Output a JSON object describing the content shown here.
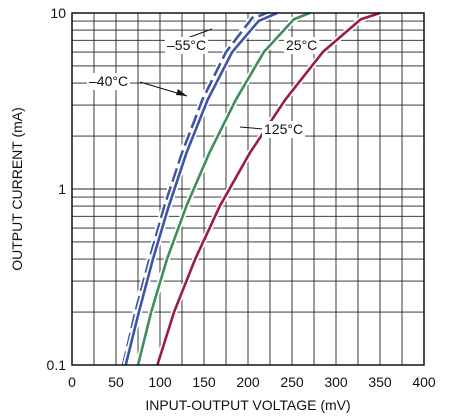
{
  "chart_data": {
    "type": "line",
    "title": "",
    "xlabel": "INPUT-OUTPUT VOLTAGE (mV)",
    "ylabel": "OUTPUT CURRENT (mA)",
    "x_scale": "linear",
    "y_scale": "log",
    "xlim": [
      0,
      400
    ],
    "ylim": [
      0.1,
      10
    ],
    "x_ticks": [
      "0",
      "50",
      "100",
      "150",
      "200",
      "250",
      "300",
      "350",
      "400"
    ],
    "y_ticks": [
      "0.1",
      "1",
      "10"
    ],
    "grid": true,
    "series": [
      {
        "name": "–55°C",
        "color": "#3c55a4",
        "dashed": true,
        "x": [
          58,
          72,
          88,
          105,
          125,
          148,
          175,
          205,
          225
        ],
        "y": [
          0.1,
          0.2,
          0.4,
          0.8,
          1.6,
          3.2,
          6.0,
          9.4,
          10
        ]
      },
      {
        "name": "–40°C",
        "color": "#3c55a4",
        "dashed": false,
        "x": [
          61,
          76,
          92,
          110,
          130,
          154,
          182,
          212,
          233
        ],
        "y": [
          0.1,
          0.2,
          0.4,
          0.8,
          1.6,
          3.2,
          6.0,
          9.0,
          10
        ]
      },
      {
        "name": "25°C",
        "color": "#3f8f5a",
        "dashed": false,
        "x": [
          75,
          90,
          108,
          130,
          156,
          186,
          218,
          252,
          270
        ],
        "y": [
          0.1,
          0.2,
          0.4,
          0.8,
          1.6,
          3.2,
          6.0,
          9.2,
          10
        ]
      },
      {
        "name": "125°C",
        "color": "#9b1c45",
        "dashed": false,
        "x": [
          97,
          116,
          140,
          168,
          202,
          242,
          285,
          328,
          350
        ],
        "y": [
          0.1,
          0.2,
          0.4,
          0.8,
          1.6,
          3.2,
          6.0,
          9.2,
          10
        ]
      }
    ]
  }
}
